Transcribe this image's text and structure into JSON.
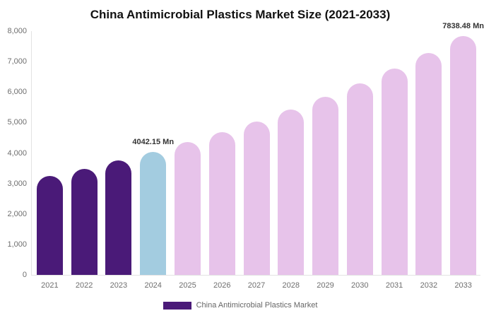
{
  "chart_data": {
    "type": "bar",
    "title": "China Antimicrobial Plastics Market Size (2021-2033)",
    "unit": "Mn",
    "categories": [
      "2021",
      "2022",
      "2023",
      "2024",
      "2025",
      "2026",
      "2027",
      "2028",
      "2029",
      "2030",
      "2031",
      "2032",
      "2033"
    ],
    "values": [
      3242,
      3489,
      3755,
      4042.15,
      4351,
      4683,
      5041,
      5425,
      5840,
      6286,
      6765,
      7282,
      7838.48
    ],
    "roles": [
      "historical",
      "historical",
      "historical",
      "base",
      "forecast",
      "forecast",
      "forecast",
      "forecast",
      "forecast",
      "forecast",
      "forecast",
      "forecast",
      "forecast"
    ],
    "bar_labels": [
      null,
      null,
      null,
      "4042.15 Mn",
      null,
      null,
      null,
      null,
      null,
      null,
      null,
      null,
      "7838.48 Mn"
    ],
    "ylim": [
      0,
      8000
    ],
    "ytick_step": 1000,
    "ytick_labels": [
      "0",
      "1,000",
      "2,000",
      "3,000",
      "4,000",
      "5,000",
      "6,000",
      "7,000",
      "8,000"
    ],
    "grid": false,
    "legend_position": "bottom",
    "xlabel": "",
    "ylabel": ""
  },
  "legend": {
    "label": "China Antimicrobial Plastics Market",
    "swatch_color": "#4A1A78"
  },
  "colors": {
    "historical_bar": "#4A1A78",
    "base_year_bar": "#A3CCE0",
    "forecast_bar": "#E7C3EA",
    "axis_line": "#E3E3E3",
    "tick_text": "#6E6E6E",
    "data_label_text": "#333333",
    "title_text": "#111111",
    "legend_text": "#666666",
    "background": "#FFFFFF"
  }
}
